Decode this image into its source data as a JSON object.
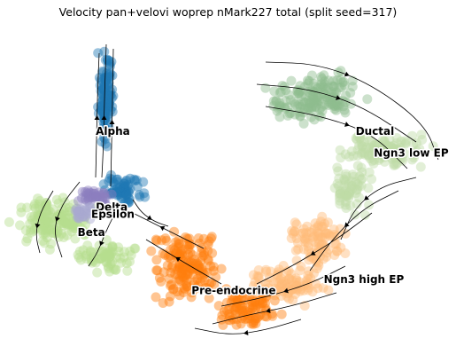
{
  "chart_data": {
    "type": "scatter",
    "title": "Velocity pan+velovi woprep nMark227 total (split seed=317)",
    "xlabel": "",
    "ylabel": "",
    "axes_visible": false,
    "grid": false,
    "overlay": "velocity streamlines with arrowheads",
    "clusters": [
      {
        "name": "Alpha",
        "color": "#1f77b4",
        "label_pos": [
          0.21,
          0.36
        ]
      },
      {
        "name": "Beta",
        "color": "#b5dd8f",
        "label_pos": [
          0.17,
          0.64
        ]
      },
      {
        "name": "Delta",
        "color": "#8c7fbf",
        "label_pos": [
          0.21,
          0.57
        ]
      },
      {
        "name": "Epsilon",
        "color": "#a8a8d0",
        "label_pos": [
          0.2,
          0.59
        ]
      },
      {
        "name": "Pre-endocrine",
        "color": "#ff7f0e",
        "label_pos": [
          0.42,
          0.8
        ]
      },
      {
        "name": "Ngn3 high EP",
        "color": "#ffbb78",
        "label_pos": [
          0.71,
          0.77
        ]
      },
      {
        "name": "Ngn3 low EP",
        "color": "#bfdca6",
        "label_pos": [
          0.82,
          0.42
        ]
      },
      {
        "name": "Ductal",
        "color": "#8fbc8f",
        "label_pos": [
          0.78,
          0.36
        ]
      }
    ]
  }
}
